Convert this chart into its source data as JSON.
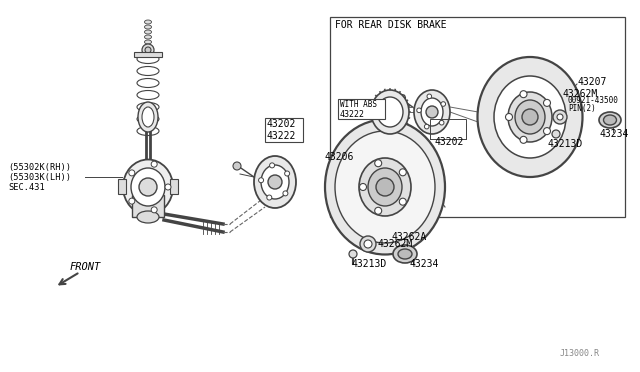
{
  "background_color": "#ffffff",
  "fig_width": 6.4,
  "fig_height": 3.72,
  "dpi": 100,
  "labels": {
    "55302K_RH": "(55302K(RH))",
    "55303K_LH": "(55303K(LH))",
    "SEC431": "SEC.431",
    "43202_left": "43202",
    "43222_left": "43222",
    "43206": "43206",
    "43207": "43207",
    "43262M_top": "43262M",
    "43262M_bot": "43262M",
    "43262A": "43262A",
    "43213D_top": "43213D",
    "43213D_bot": "43213D",
    "43234_top": "43234",
    "43234_bot": "43234",
    "43202_mid": "43202",
    "43222_mid": "43222",
    "with_abs": "WITH ABS",
    "00921": "00921-43500",
    "pin2": "PIN(2)",
    "for_rear": "FOR REAR DISK BRAKE",
    "front": "FRONT",
    "j13000": "J13000.R"
  },
  "line_color": "#444444",
  "gray1": "#cccccc",
  "gray2": "#e0e0e0",
  "gray3": "#aaaaaa"
}
